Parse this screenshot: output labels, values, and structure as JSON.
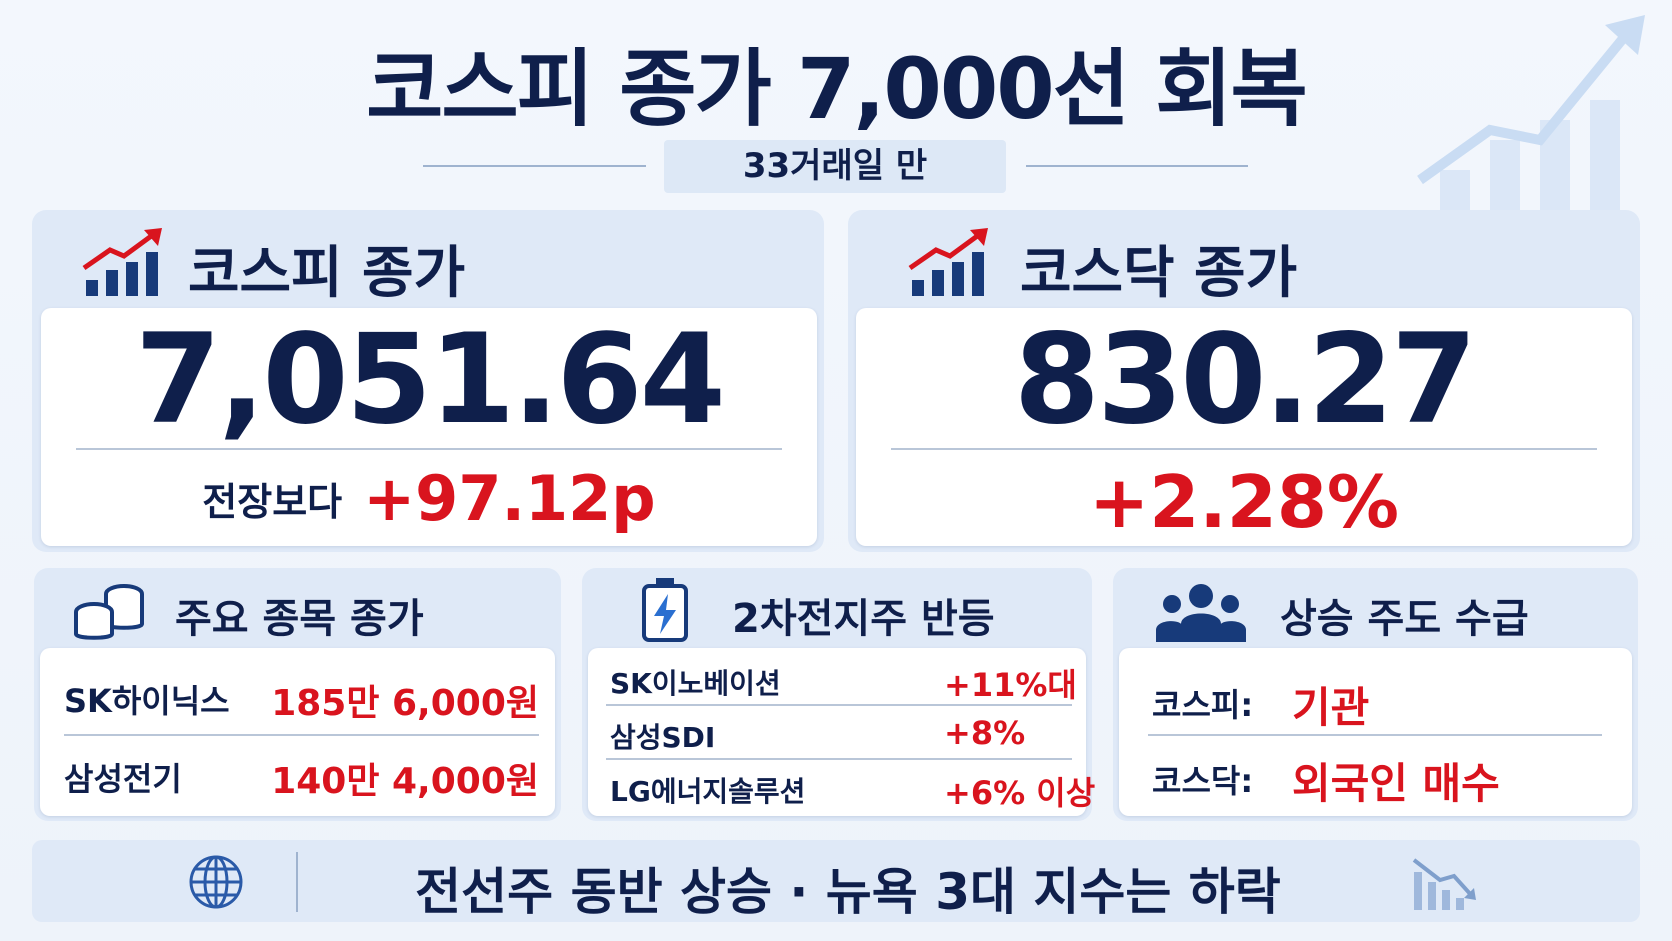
{
  "header": {
    "title": "코스피 종가 7,000선 회복",
    "subtitle": "33거래일 만"
  },
  "cards": [
    {
      "title": "코스피 종가",
      "value": "7,051.64",
      "change_label": "전장보다",
      "change": "+97.12p"
    },
    {
      "title": "코스닥 종가",
      "value": "830.27",
      "change": "+2.28%"
    }
  ],
  "panels": [
    {
      "title": "주요 종목 종가",
      "rows": [
        [
          "SK하이닉스",
          "185만 6,000원"
        ],
        [
          "삼성전기",
          "140만 4,000원"
        ]
      ]
    },
    {
      "title": "2차전지주 반등",
      "rows": [
        [
          "SK이노베이션",
          "+11%대"
        ],
        [
          "삼성SDI",
          "+8%"
        ],
        [
          "LG에너지솔루션",
          "+6% 이상"
        ]
      ]
    },
    {
      "title": "상승 주도 수급",
      "rows": [
        [
          "코스피:",
          "기관"
        ],
        [
          "코스닥:",
          "외국인 매수"
        ]
      ]
    }
  ],
  "footer": "전선주 동반 상승 · 뉴욕 3대 지수는 하락"
}
